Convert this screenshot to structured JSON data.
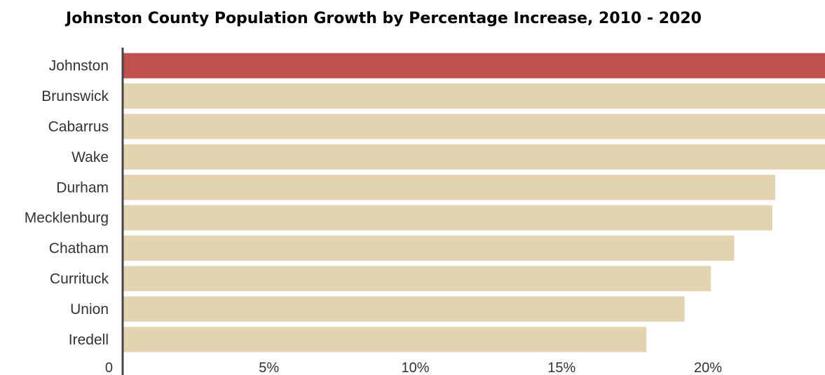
{
  "chart_data": {
    "type": "bar",
    "orientation": "horizontal",
    "title": "Johnston County Population Growth by Percentage Increase, 2010 - 2020",
    "categories": [
      "Johnston",
      "Brunswick",
      "Cabarrus",
      "Wake",
      "Durham",
      "Mecklenburg",
      "Chatham",
      "Currituck",
      "Union",
      "Iredell"
    ],
    "values": [
      24,
      24,
      24,
      24,
      22.3,
      22.2,
      20.9,
      20.1,
      19.2,
      17.9
    ],
    "highlight_category": "Johnston",
    "colors": {
      "highlight": "#c0504d",
      "bar": "#e3d3b1",
      "axis": "#444444"
    },
    "xlim": [
      0,
      24
    ],
    "xticks": [
      {
        "value": 0,
        "label": "0"
      },
      {
        "value": 5,
        "label": "5%"
      },
      {
        "value": 10,
        "label": "10%"
      },
      {
        "value": 15,
        "label": "15%"
      },
      {
        "value": 20,
        "label": "20%"
      }
    ],
    "xlabel": "",
    "ylabel": "",
    "grid": false,
    "legend": "none"
  }
}
